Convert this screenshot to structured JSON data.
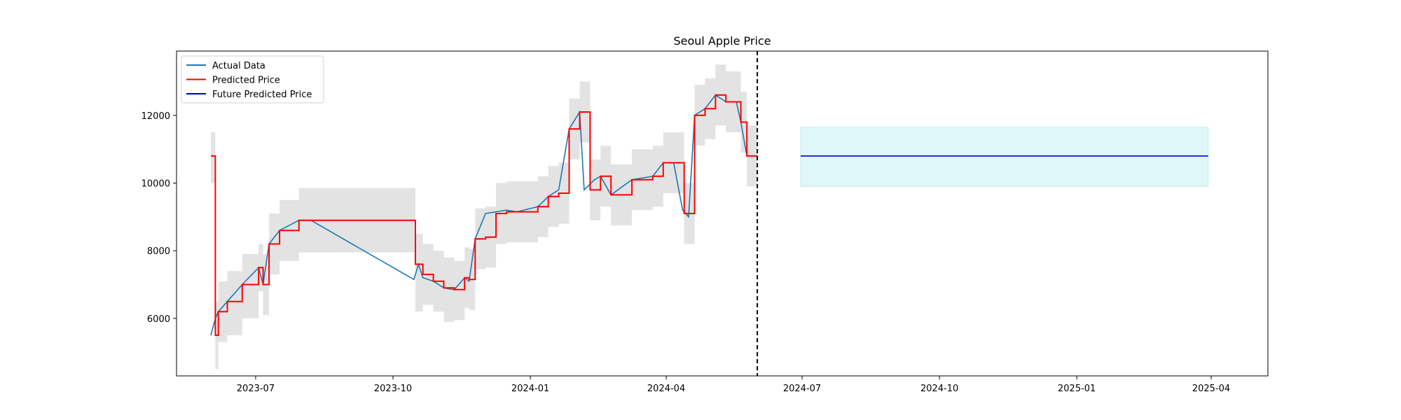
{
  "chart_data": {
    "type": "line",
    "title": "Seoul Apple Price",
    "xlabel": "",
    "ylabel": "",
    "xlim": [
      "2023-05-09",
      "2025-05-09"
    ],
    "ylim": [
      4300,
      13900
    ],
    "grid": false,
    "legend_position": "top-left",
    "x_ticks": [
      "2023-07",
      "2023-10",
      "2024-01",
      "2024-04",
      "2024-07",
      "2024-10",
      "2025-01",
      "2025-04"
    ],
    "y_ticks": [
      6000,
      8000,
      10000,
      12000
    ],
    "vertical_line": {
      "x": "2024-06-01",
      "style": "dashed",
      "color": "#000000"
    },
    "series": [
      {
        "name": "Actual Data",
        "color": "#1f77b4",
        "points": [
          [
            "2023-06-01",
            5500
          ],
          [
            "2023-06-04",
            6000
          ],
          [
            "2023-06-06",
            6200
          ],
          [
            "2023-06-12",
            6500
          ],
          [
            "2023-06-22",
            7000
          ],
          [
            "2023-07-03",
            7500
          ],
          [
            "2023-07-06",
            7000
          ],
          [
            "2023-07-10",
            8200
          ],
          [
            "2023-07-17",
            8600
          ],
          [
            "2023-07-30",
            8900
          ],
          [
            "2023-08-07",
            8900
          ],
          [
            "2023-10-15",
            7150
          ],
          [
            "2023-10-18",
            7600
          ],
          [
            "2023-10-21",
            7200
          ],
          [
            "2023-10-28",
            7100
          ],
          [
            "2023-11-04",
            6900
          ],
          [
            "2023-11-11",
            6850
          ],
          [
            "2023-11-18",
            7200
          ],
          [
            "2023-11-21",
            7100
          ],
          [
            "2023-11-25",
            8350
          ],
          [
            "2023-12-02",
            9100
          ],
          [
            "2023-12-09",
            9150
          ],
          [
            "2023-12-16",
            9200
          ],
          [
            "2023-12-23",
            9150
          ],
          [
            "2024-01-06",
            9300
          ],
          [
            "2024-01-13",
            9600
          ],
          [
            "2024-01-20",
            9800
          ],
          [
            "2024-01-27",
            11600
          ],
          [
            "2024-02-03",
            12100
          ],
          [
            "2024-02-06",
            9800
          ],
          [
            "2024-02-13",
            10100
          ],
          [
            "2024-02-17",
            10200
          ],
          [
            "2024-02-24",
            9650
          ],
          [
            "2024-03-09",
            10100
          ],
          [
            "2024-03-23",
            10200
          ],
          [
            "2024-03-30",
            10600
          ],
          [
            "2024-04-06",
            10600
          ],
          [
            "2024-04-12",
            9200
          ],
          [
            "2024-04-16",
            9000
          ],
          [
            "2024-04-20",
            12000
          ],
          [
            "2024-04-27",
            12200
          ],
          [
            "2024-05-04",
            12600
          ],
          [
            "2024-05-11",
            12400
          ],
          [
            "2024-05-18",
            12400
          ],
          [
            "2024-05-21",
            11800
          ],
          [
            "2024-05-25",
            10800
          ],
          [
            "2024-06-01",
            10800
          ]
        ]
      },
      {
        "name": "Predicted Price",
        "color": "#ff0000",
        "points": [
          [
            "2023-06-01",
            10800
          ],
          [
            "2023-06-04",
            5500
          ],
          [
            "2023-06-06",
            6200
          ],
          [
            "2023-06-12",
            6500
          ],
          [
            "2023-06-22",
            7000
          ],
          [
            "2023-07-03",
            7500
          ],
          [
            "2023-07-06",
            7000
          ],
          [
            "2023-07-10",
            8200
          ],
          [
            "2023-07-17",
            8600
          ],
          [
            "2023-07-30",
            8900
          ],
          [
            "2023-10-15",
            8900
          ],
          [
            "2023-10-16",
            7600
          ],
          [
            "2023-10-21",
            7300
          ],
          [
            "2023-10-28",
            7100
          ],
          [
            "2023-11-04",
            6900
          ],
          [
            "2023-11-11",
            6850
          ],
          [
            "2023-11-18",
            7200
          ],
          [
            "2023-11-21",
            7150
          ],
          [
            "2023-11-25",
            8350
          ],
          [
            "2023-12-02",
            8400
          ],
          [
            "2023-12-09",
            9100
          ],
          [
            "2023-12-16",
            9150
          ],
          [
            "2023-12-23",
            9150
          ],
          [
            "2024-01-06",
            9300
          ],
          [
            "2024-01-13",
            9600
          ],
          [
            "2024-01-20",
            9700
          ],
          [
            "2024-01-27",
            11600
          ],
          [
            "2024-02-03",
            12100
          ],
          [
            "2024-02-10",
            9800
          ],
          [
            "2024-02-17",
            10200
          ],
          [
            "2024-02-24",
            9650
          ],
          [
            "2024-03-09",
            10100
          ],
          [
            "2024-03-23",
            10200
          ],
          [
            "2024-03-30",
            10600
          ],
          [
            "2024-04-10",
            10600
          ],
          [
            "2024-04-13",
            9100
          ],
          [
            "2024-04-17",
            9100
          ],
          [
            "2024-04-20",
            12000
          ],
          [
            "2024-04-27",
            12200
          ],
          [
            "2024-05-04",
            12600
          ],
          [
            "2024-05-11",
            12400
          ],
          [
            "2024-05-18",
            12400
          ],
          [
            "2024-05-21",
            11800
          ],
          [
            "2024-05-25",
            10800
          ],
          [
            "2024-06-01",
            10800
          ]
        ]
      },
      {
        "name": "Future Predicted Price",
        "color": "#0000cc",
        "points": [
          [
            "2024-06-30",
            10800
          ],
          [
            "2025-03-30",
            10800
          ]
        ]
      }
    ],
    "past_confidence_band": {
      "color": "#d9d9d9",
      "points": [
        [
          "2023-06-01",
          11500,
          10000
        ],
        [
          "2023-06-04",
          6500,
          4500
        ],
        [
          "2023-06-06",
          7100,
          5300
        ],
        [
          "2023-06-12",
          7400,
          5500
        ],
        [
          "2023-06-22",
          7900,
          6000
        ],
        [
          "2023-07-03",
          8200,
          6800
        ],
        [
          "2023-07-06",
          7900,
          6100
        ],
        [
          "2023-07-10",
          9100,
          7300
        ],
        [
          "2023-07-17",
          9500,
          7700
        ],
        [
          "2023-07-30",
          9850,
          7950
        ],
        [
          "2023-10-15",
          9850,
          7950
        ],
        [
          "2023-10-16",
          8500,
          6200
        ],
        [
          "2023-10-21",
          8200,
          6400
        ],
        [
          "2023-10-28",
          8000,
          6200
        ],
        [
          "2023-11-04",
          7800,
          5900
        ],
        [
          "2023-11-11",
          7700,
          5950
        ],
        [
          "2023-11-18",
          8100,
          6300
        ],
        [
          "2023-11-21",
          8050,
          6250
        ],
        [
          "2023-11-25",
          9250,
          7450
        ],
        [
          "2023-12-02",
          9300,
          7500
        ],
        [
          "2023-12-09",
          10000,
          8200
        ],
        [
          "2023-12-16",
          10050,
          8250
        ],
        [
          "2023-12-23",
          10050,
          8250
        ],
        [
          "2024-01-06",
          10200,
          8400
        ],
        [
          "2024-01-13",
          10500,
          8700
        ],
        [
          "2024-01-20",
          10600,
          8800
        ],
        [
          "2024-01-27",
          12500,
          10700
        ],
        [
          "2024-02-03",
          13000,
          11200
        ],
        [
          "2024-02-10",
          10700,
          8900
        ],
        [
          "2024-02-17",
          11100,
          9300
        ],
        [
          "2024-02-24",
          10550,
          8750
        ],
        [
          "2024-03-09",
          11000,
          9200
        ],
        [
          "2024-03-23",
          11100,
          9300
        ],
        [
          "2024-03-30",
          11500,
          9700
        ],
        [
          "2024-04-10",
          11500,
          9700
        ],
        [
          "2024-04-13",
          10000,
          8200
        ],
        [
          "2024-04-17",
          10000,
          8200
        ],
        [
          "2024-04-20",
          12900,
          11100
        ],
        [
          "2024-04-27",
          13100,
          11300
        ],
        [
          "2024-05-04",
          13500,
          11700
        ],
        [
          "2024-05-11",
          13300,
          11500
        ],
        [
          "2024-05-18",
          13300,
          11500
        ],
        [
          "2024-05-21",
          12700,
          10900
        ],
        [
          "2024-05-25",
          11700,
          9900
        ],
        [
          "2024-06-01",
          11700,
          9900
        ]
      ]
    },
    "future_confidence_band": {
      "color": "#e0f7f7",
      "border_color": "#bfeeee",
      "x_start": "2024-06-30",
      "x_end": "2025-03-30",
      "upper": 11650,
      "lower": 9900
    }
  }
}
